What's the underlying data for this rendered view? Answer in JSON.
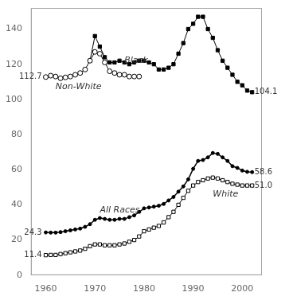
{
  "chart_data": {
    "type": "line",
    "series": [
      {
        "name": "Non-White",
        "color": "#000000",
        "marker": "open circle",
        "x": [
          1960,
          1961,
          1962,
          1963,
          1964,
          1965,
          1966,
          1967,
          1968,
          1969,
          1970,
          1971,
          1972,
          1973,
          1974,
          1975,
          1976,
          1977,
          1978,
          1979
        ],
        "values": [
          112.7,
          113.5,
          113,
          112,
          112.5,
          113,
          114,
          115,
          117,
          122,
          127,
          126,
          121,
          116,
          115,
          114,
          114,
          113,
          113,
          113
        ]
      },
      {
        "name": "Black",
        "color": "#000000",
        "marker": "square",
        "x": [
          1969,
          1970,
          1971,
          1972,
          1973,
          1974,
          1975,
          1976,
          1977,
          1978,
          1979,
          1980,
          1981,
          1982,
          1983,
          1984,
          1985,
          1986,
          1987,
          1988,
          1989,
          1990,
          1991,
          1992,
          1993,
          1994,
          1995,
          1996,
          1997,
          1998,
          1999,
          2000,
          2001,
          2002
        ],
        "values": [
          122,
          136,
          130,
          124,
          121,
          121,
          122,
          121,
          120,
          121,
          122,
          122,
          121,
          120,
          117,
          117,
          118,
          120,
          126,
          132,
          140,
          143,
          147,
          147,
          140,
          135,
          128,
          122,
          118,
          114,
          110,
          108,
          105,
          104.1
        ]
      },
      {
        "name": "All Races",
        "color": "#000000",
        "marker": "circle",
        "x": [
          1960,
          1961,
          1962,
          1963,
          1964,
          1965,
          1966,
          1967,
          1968,
          1969,
          1970,
          1971,
          1972,
          1973,
          1974,
          1975,
          1976,
          1977,
          1978,
          1979,
          1980,
          1981,
          1982,
          1983,
          1984,
          1985,
          1986,
          1987,
          1988,
          1989,
          1990,
          1991,
          1992,
          1993,
          1994,
          1995,
          1996,
          1997,
          1998,
          1999,
          2000,
          2001,
          2002
        ],
        "values": [
          24.3,
          24.2,
          24.2,
          24.5,
          25.0,
          25.5,
          26.0,
          26.5,
          27.5,
          29.0,
          31.5,
          32.5,
          32.0,
          31.5,
          31.5,
          32.0,
          32.0,
          33.0,
          34.0,
          36.0,
          38.0,
          38.5,
          39.0,
          39.5,
          40.5,
          42.5,
          44.5,
          47.5,
          50.5,
          54.5,
          60.5,
          65.0,
          65.5,
          67.0,
          69.5,
          69.0,
          67.0,
          65.0,
          62.0,
          61.0,
          59.5,
          58.8,
          58.6
        ]
      },
      {
        "name": "White",
        "color": "#000000",
        "marker": "open square",
        "x": [
          1960,
          1961,
          1962,
          1963,
          1964,
          1965,
          1966,
          1967,
          1968,
          1969,
          1970,
          1971,
          1972,
          1973,
          1974,
          1975,
          1976,
          1977,
          1978,
          1979,
          1980,
          1981,
          1982,
          1983,
          1984,
          1985,
          1986,
          1987,
          1988,
          1989,
          1990,
          1991,
          1992,
          1993,
          1994,
          1995,
          1996,
          1997,
          1998,
          1999,
          2000,
          2001,
          2002
        ],
        "values": [
          11.4,
          11.5,
          11.5,
          12.0,
          12.5,
          13.0,
          13.5,
          14.0,
          15.0,
          16.5,
          17.5,
          17.5,
          17.0,
          17.0,
          17.0,
          17.5,
          18.0,
          19.0,
          20.0,
          22.0,
          25.0,
          26.0,
          27.0,
          28.0,
          30.0,
          33.0,
          36.0,
          40.0,
          44.0,
          48.0,
          51.0,
          53.0,
          54.0,
          55.0,
          55.5,
          55.0,
          54.0,
          53.0,
          52.0,
          51.5,
          51.0,
          51.0,
          51.0
        ]
      }
    ],
    "annotations": [
      {
        "text": "Black",
        "x": 1976,
        "y": 122
      },
      {
        "text": "Non-White",
        "x": 1962,
        "y": 107
      },
      {
        "text": "All Races",
        "x": 1971,
        "y": 37
      },
      {
        "text": "White",
        "x": 1994,
        "y": 46
      },
      {
        "text": "112.7",
        "x": 1959.2,
        "y": 112.7
      },
      {
        "text": "104.1",
        "x": 2002.5,
        "y": 104.1
      },
      {
        "text": "24.3",
        "x": 1959.2,
        "y": 24.3
      },
      {
        "text": "11.4",
        "x": 1959.2,
        "y": 11.4
      },
      {
        "text": "58.6",
        "x": 2002.5,
        "y": 58.6
      },
      {
        "text": "51.0",
        "x": 2002.5,
        "y": 51.0
      }
    ],
    "xlim": [
      1957,
      2004
    ],
    "ylim": [
      0,
      152
    ],
    "xticks": [
      1960,
      1970,
      1980,
      1990,
      2000
    ],
    "yticks": [
      0,
      20,
      40,
      60,
      80,
      100,
      120,
      140
    ],
    "grid": false,
    "legend": "none"
  }
}
